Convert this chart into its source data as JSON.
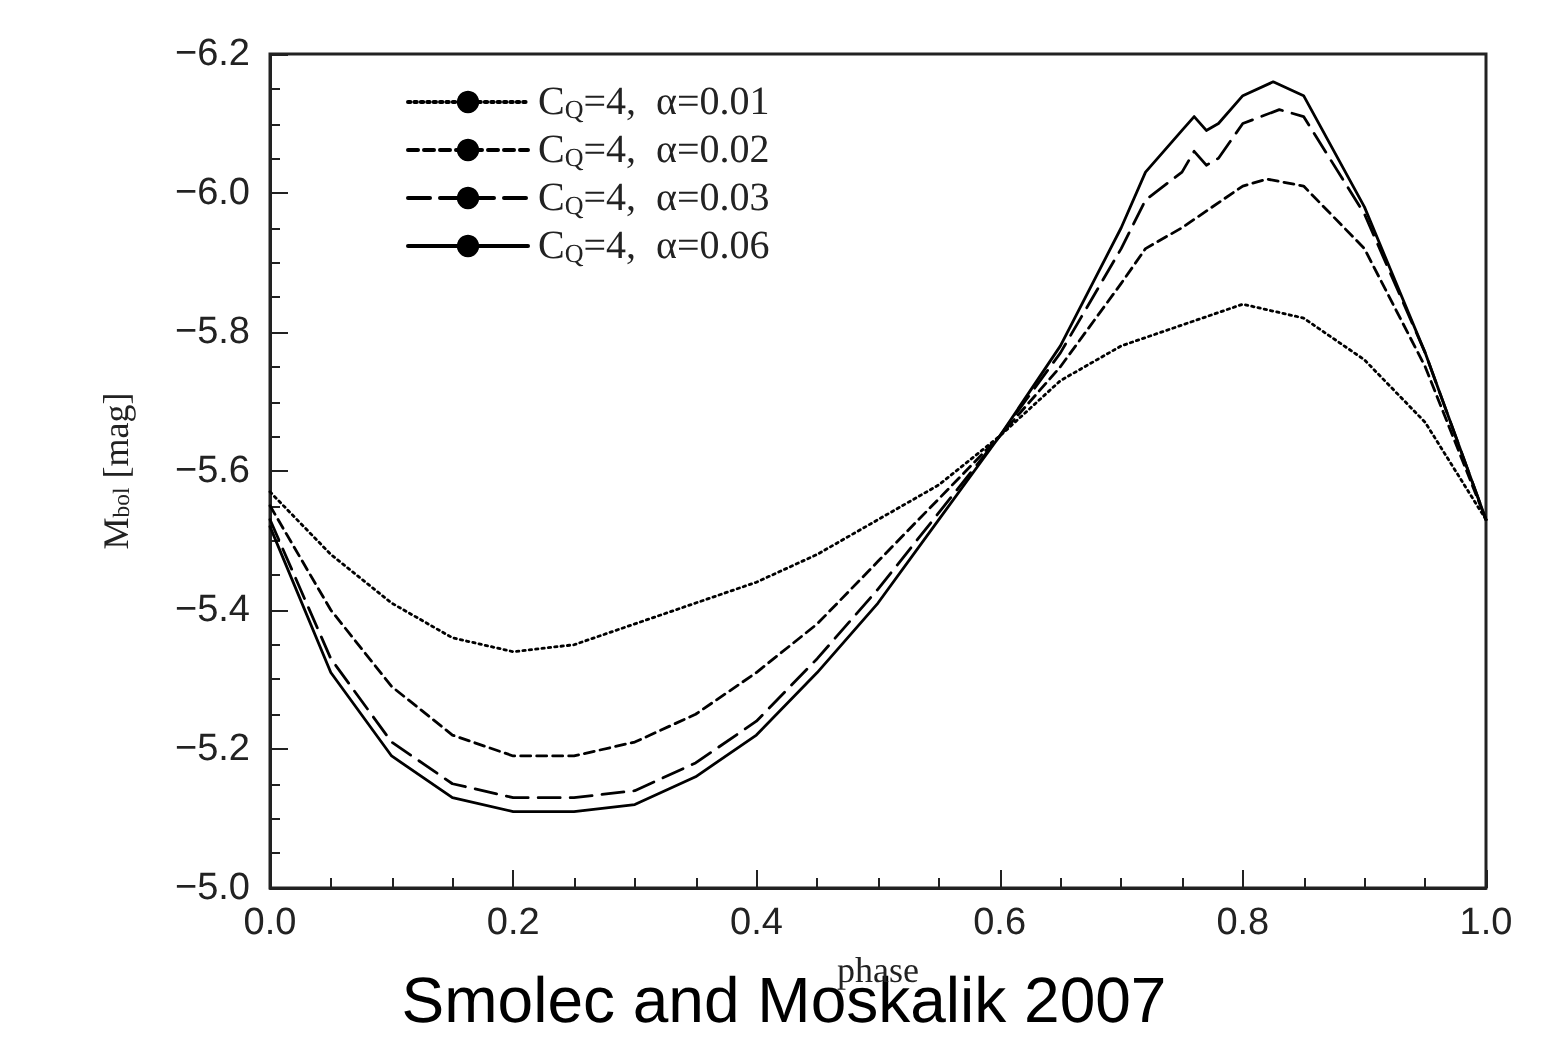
{
  "chart_data": {
    "type": "line",
    "xlabel": "phase",
    "ylabel": "M$_{bol}$ [mag]",
    "annotations": [
      "Smolec and Moskalik 2007"
    ],
    "xlim": [
      0,
      1
    ],
    "xticks": [
      {
        "value": 0,
        "label": "0.0"
      },
      0.2,
      0.4,
      0.6,
      0.8,
      {
        "value": 1,
        "label": "1.0"
      }
    ],
    "ylim": [
      -5,
      -6.2
    ],
    "yticks": [
      {
        "value": -5,
        "label": "−5.0"
      },
      {
        "value": -5.2,
        "label": "−5.2"
      },
      {
        "value": -5.4,
        "label": "−5.4"
      },
      {
        "value": -5.6,
        "label": "−5.6"
      },
      {
        "value": -5.8,
        "label": "−5.8"
      },
      {
        "value": -6,
        "label": "−6.0"
      },
      {
        "value": -6.2,
        "label": "−6.2"
      }
    ],
    "legend": "top left",
    "grid": false,
    "marker": "none",
    "series": [
      {
        "name": "C$_{Q}$=4,  α=0.01",
        "color": "#000000",
        "line_style": "dotted",
        "x": [
          0,
          0.05,
          0.1,
          0.15,
          0.2,
          0.25,
          0.3,
          0.35,
          0.4,
          0.45,
          0.5,
          0.55,
          0.6,
          0.65,
          0.7,
          0.75,
          0.8,
          0.85,
          0.9,
          0.95,
          1
        ],
        "values": [
          -5.57,
          -5.48,
          -5.41,
          -5.36,
          -5.34,
          -5.35,
          -5.38,
          -5.41,
          -5.44,
          -5.48,
          -5.53,
          -5.58,
          -5.65,
          -5.73,
          -5.78,
          -5.81,
          -5.84,
          -5.82,
          -5.76,
          -5.67,
          -5.53
        ]
      },
      {
        "name": "C$_{Q}$=4,  α=0.02",
        "color": "#000000",
        "line_style": "dashed",
        "x": [
          0,
          0.05,
          0.1,
          0.15,
          0.2,
          0.25,
          0.3,
          0.35,
          0.4,
          0.45,
          0.5,
          0.55,
          0.6,
          0.65,
          0.7,
          0.72,
          0.75,
          0.8,
          0.82,
          0.85,
          0.9,
          0.95,
          1
        ],
        "values": [
          -5.55,
          -5.4,
          -5.29,
          -5.22,
          -5.19,
          -5.19,
          -5.21,
          -5.25,
          -5.31,
          -5.38,
          -5.47,
          -5.56,
          -5.65,
          -5.75,
          -5.87,
          -5.92,
          -5.95,
          -6.01,
          -6.02,
          -6.01,
          -5.92,
          -5.75,
          -5.53
        ]
      },
      {
        "name": "C$_{Q}$=4,  α=0.03",
        "color": "#000000",
        "line_style": "dashed",
        "x": [
          0,
          0.05,
          0.1,
          0.15,
          0.2,
          0.25,
          0.3,
          0.35,
          0.4,
          0.45,
          0.5,
          0.55,
          0.6,
          0.65,
          0.7,
          0.72,
          0.75,
          0.76,
          0.77,
          0.78,
          0.8,
          0.83,
          0.85,
          0.9,
          0.95,
          1
        ],
        "values": [
          -5.53,
          -5.33,
          -5.21,
          -5.15,
          -5.13,
          -5.13,
          -5.14,
          -5.18,
          -5.24,
          -5.33,
          -5.43,
          -5.54,
          -5.65,
          -5.77,
          -5.92,
          -5.99,
          -6.03,
          -6.06,
          -6.04,
          -6.05,
          -6.1,
          -6.12,
          -6.11,
          -5.97,
          -5.77,
          -5.53
        ]
      },
      {
        "name": "C$_{Q}$=4,  α=0.06",
        "color": "#000000",
        "line_style": "solid",
        "x": [
          0,
          0.05,
          0.1,
          0.15,
          0.2,
          0.25,
          0.3,
          0.35,
          0.4,
          0.45,
          0.5,
          0.55,
          0.6,
          0.65,
          0.7,
          0.72,
          0.75,
          0.76,
          0.77,
          0.78,
          0.8,
          0.825,
          0.85,
          0.9,
          0.95,
          1
        ],
        "values": [
          -5.52,
          -5.31,
          -5.19,
          -5.13,
          -5.11,
          -5.11,
          -5.12,
          -5.16,
          -5.22,
          -5.31,
          -5.41,
          -5.53,
          -5.65,
          -5.78,
          -5.95,
          -6.03,
          -6.09,
          -6.11,
          -6.09,
          -6.1,
          -6.14,
          -6.16,
          -6.14,
          -5.98,
          -5.77,
          -5.53
        ]
      }
    ]
  }
}
